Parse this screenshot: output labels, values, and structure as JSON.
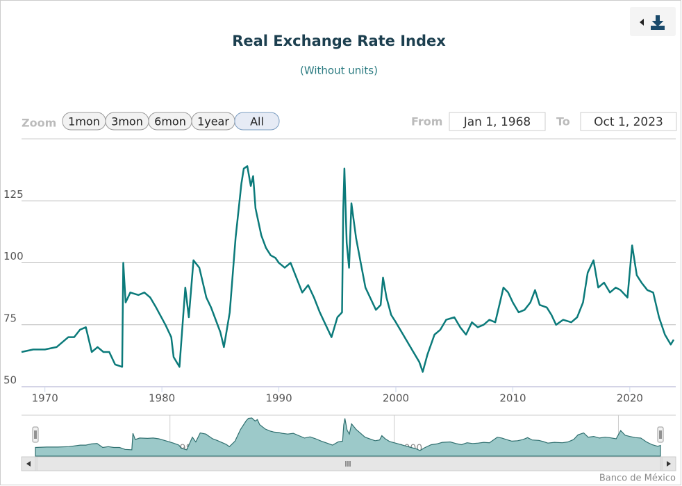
{
  "chart_data": {
    "type": "line",
    "title": "Real Exchange Rate Index",
    "subtitle": "(Without units)",
    "range_selector": {
      "label": "Zoom",
      "buttons": [
        "1mon",
        "3mon",
        "6mon",
        "1year",
        "All"
      ],
      "selected": 4,
      "from_label": "From",
      "from": "Jan 1, 1968",
      "to_label": "To",
      "to": "Oct 1, 2023"
    },
    "credits": "Banco de México",
    "xlim": [
      1968,
      2023.75
    ],
    "xticks": [
      1970,
      1980,
      1990,
      2000,
      2010,
      2020
    ],
    "ylim": [
      50,
      150
    ],
    "yticks": [
      50,
      75,
      100,
      125
    ],
    "grid": true,
    "navigator_xticks": [
      1980,
      2000,
      2020
    ],
    "series": [
      {
        "name": "Real Exchange Rate Index",
        "color": "#0b7a7a",
        "x": [
          1968,
          1969,
          1970,
          1971,
          1972,
          1972.5,
          1973,
          1973.5,
          1974,
          1974.5,
          1975,
          1975.5,
          1976,
          1976.6,
          1976.7,
          1976.9,
          1977.3,
          1978,
          1978.5,
          1979,
          1979.5,
          1980.3,
          1980.8,
          1981,
          1981.5,
          1982,
          1982.3,
          1982.7,
          1983.2,
          1983.8,
          1984.2,
          1985,
          1985.3,
          1985.8,
          1986.3,
          1986.8,
          1987,
          1987.3,
          1987.6,
          1987.8,
          1988,
          1988.5,
          1988.9,
          1989.3,
          1989.7,
          1990,
          1990.5,
          1991,
          1991.5,
          1992,
          1992.5,
          1993,
          1993.5,
          1994,
          1994.5,
          1995,
          1995.4,
          1995.5,
          1995.6,
          1995.8,
          1996,
          1996.2,
          1996.6,
          1997,
          1997.4,
          1997.9,
          1998.3,
          1998.7,
          1998.9,
          1999.2,
          1999.6,
          2000,
          2000.5,
          2001,
          2001.5,
          2002,
          2002.3,
          2002.7,
          2003.3,
          2003.8,
          2004.3,
          2005,
          2005.5,
          2006,
          2006.5,
          2007,
          2007.5,
          2008,
          2008.5,
          2008.9,
          2009.2,
          2009.6,
          2010,
          2010.5,
          2011,
          2011.5,
          2011.9,
          2012.3,
          2012.9,
          2013.3,
          2013.7,
          2014.3,
          2015,
          2015.5,
          2016,
          2016.4,
          2016.9,
          2017.3,
          2017.8,
          2018.3,
          2018.8,
          2019.2,
          2019.8,
          2020.2,
          2020.6,
          2021,
          2021.5,
          2022,
          2022.5,
          2023,
          2023.5,
          2023.75
        ],
        "values": [
          64,
          65,
          65,
          66,
          70,
          70,
          73,
          74,
          64,
          66,
          64,
          64,
          59,
          58,
          100,
          84,
          88,
          87,
          88,
          86,
          82,
          75,
          70,
          62,
          58,
          90,
          78,
          101,
          98,
          86,
          82,
          72,
          66,
          80,
          110,
          132,
          138,
          139,
          131,
          135,
          122,
          111,
          106,
          103,
          102,
          100,
          98,
          100,
          94,
          88,
          91,
          86,
          80,
          75,
          70,
          78,
          80,
          121,
          138,
          108,
          98,
          124,
          110,
          100,
          90,
          85,
          81,
          83,
          94,
          86,
          79,
          76,
          72,
          68,
          64,
          60,
          56,
          63,
          71,
          73,
          77,
          78,
          74,
          71,
          76,
          74,
          75,
          77,
          76,
          84,
          90,
          88,
          84,
          80,
          81,
          84,
          89,
          83,
          82,
          79,
          75,
          77,
          76,
          78,
          84,
          96,
          101,
          90,
          92,
          88,
          90,
          89,
          86,
          107,
          95,
          92,
          89,
          88,
          78,
          71,
          67,
          69
        ]
      }
    ]
  }
}
